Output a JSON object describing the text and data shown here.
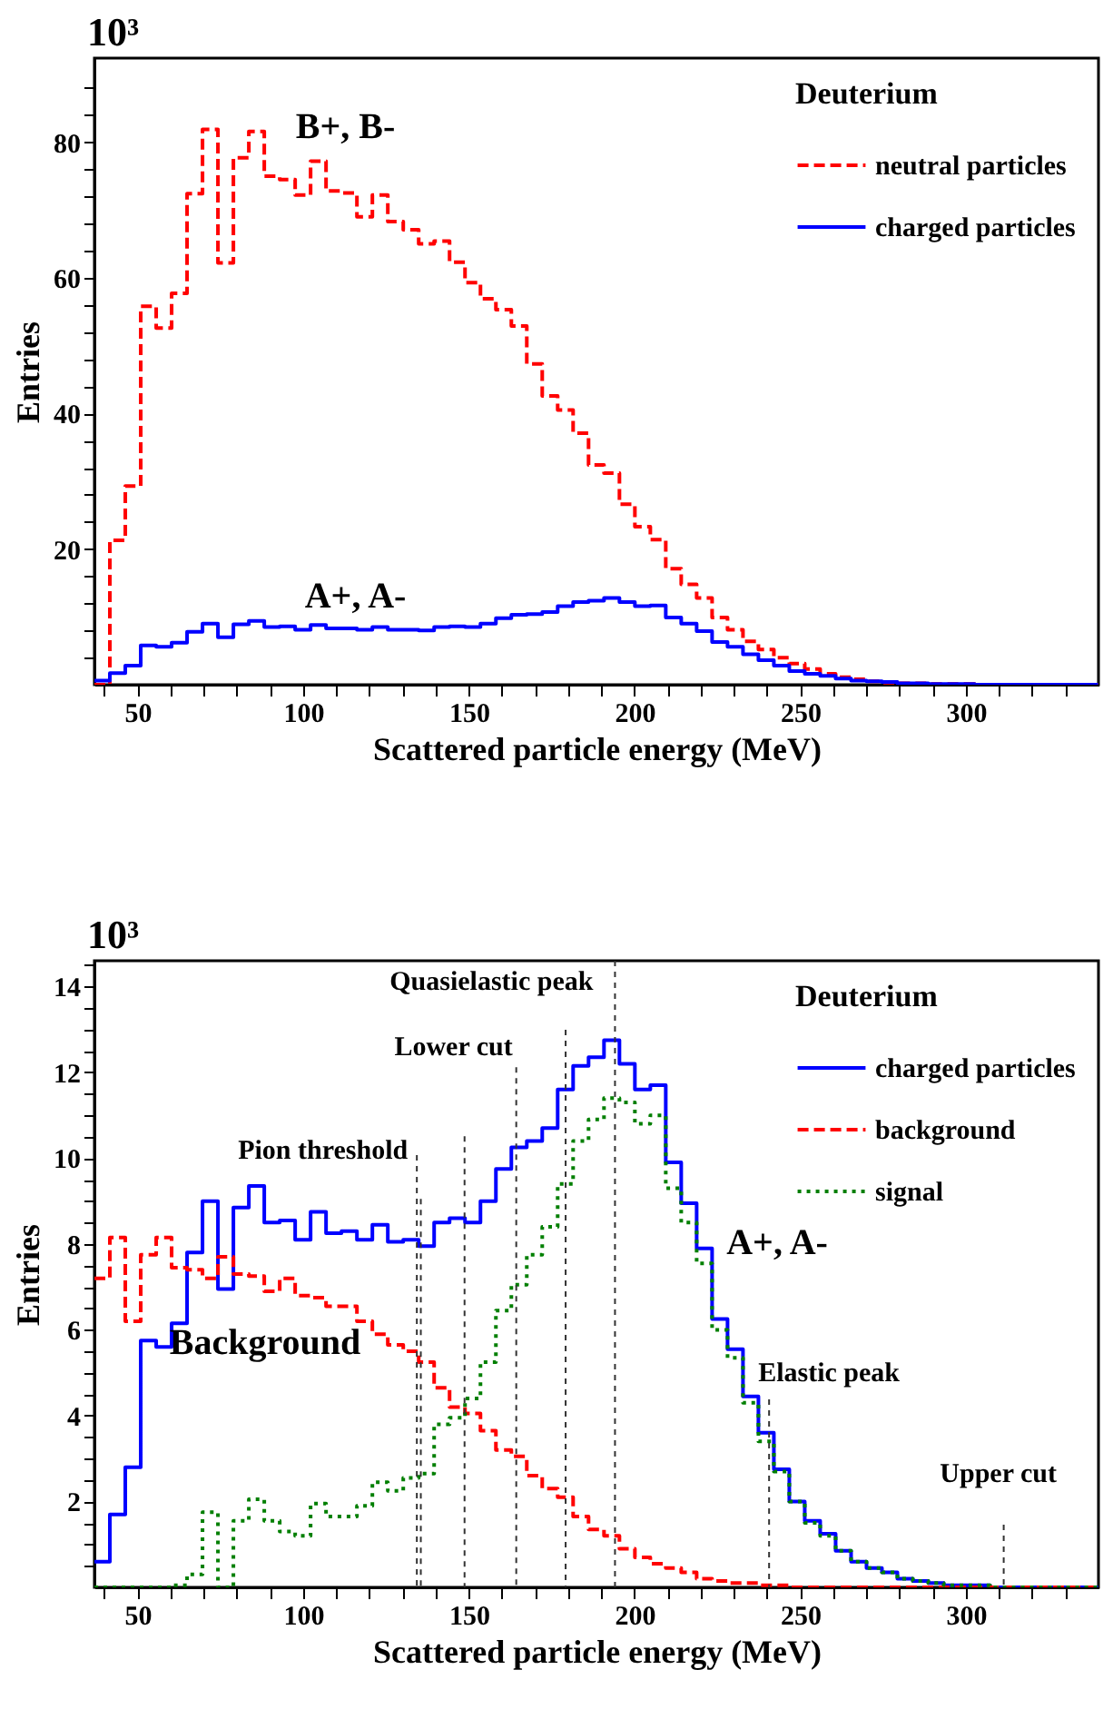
{
  "chart_data": [
    {
      "type": "histogram",
      "xlabel": "Scattered particle energy (MeV)",
      "ylabel": "Entries",
      "bins": [
        37,
        41.66,
        46.32,
        50.98,
        55.64,
        60.3,
        64.96,
        69.62,
        74.28,
        78.94,
        83.6,
        88.26,
        92.92,
        97.58,
        102.24,
        106.9,
        111.56,
        116.22,
        120.88,
        125.54,
        130.2,
        134.86,
        139.52,
        144.18,
        148.84,
        153.5,
        158.16,
        162.82,
        167.48,
        172.14,
        176.8,
        181.46,
        186.12,
        190.78,
        195.44,
        200.1,
        204.76,
        209.42,
        214.08,
        218.74,
        223.4,
        228.06,
        232.72,
        237.38,
        242.04,
        246.7,
        251.36,
        256.02,
        260.68,
        265.34,
        270,
        274.66,
        279.32,
        283.98,
        288.64,
        293.3,
        297.96,
        302.62,
        307.28,
        311.94,
        316.6,
        321.26,
        325.92,
        330.58,
        335.24,
        339.9
      ],
      "series": [
        {
          "name": "neutral particles",
          "color": "#ff0000",
          "line_style": "dashed",
          "values": [
            0,
            21.3,
            29.3,
            55.8,
            52.6,
            57.7,
            72.4,
            81.9,
            62.2,
            77.7,
            81.6,
            75,
            74.5,
            72.2,
            77.2,
            72.8,
            72.5,
            69,
            72.2,
            68.3,
            67.1,
            65,
            65.4,
            62.3,
            59.3,
            56.9,
            55.3,
            52.9,
            47.3,
            42.6,
            40.5,
            37.1,
            32.4,
            31.2,
            26.6,
            23.3,
            21.4,
            17.1,
            14.8,
            12.8,
            9.9,
            8.1,
            6.4,
            5.2,
            4.0,
            3.1,
            2.3,
            1.6,
            1.1,
            0.8,
            0.5,
            0.3,
            0.2,
            0.2,
            0.1,
            0.1,
            0.1,
            0,
            0,
            0,
            0,
            0,
            0,
            0,
            0
          ]
        },
        {
          "name": "charged particles",
          "color": "#0000ff",
          "line_style": "solid",
          "values": [
            0.6,
            1.7,
            2.8,
            5.8,
            5.6,
            6.2,
            7.8,
            9.0,
            7.0,
            8.9,
            9.4,
            8.5,
            8.6,
            8.1,
            8.8,
            8.3,
            8.3,
            8.1,
            8.5,
            8.1,
            8.1,
            8.0,
            8.5,
            8.6,
            8.5,
            9.0,
            9.8,
            10.3,
            10.4,
            10.7,
            11.6,
            12.2,
            12.4,
            12.8,
            12.2,
            11.6,
            11.7,
            9.9,
            9.0,
            7.9,
            6.3,
            5.6,
            4.5,
            3.6,
            2.8,
            2.0,
            1.6,
            1.3,
            0.9,
            0.6,
            0.5,
            0.4,
            0.2,
            0.2,
            0.1,
            0.1,
            0.1,
            0,
            0,
            0,
            0,
            0,
            0,
            0,
            0
          ]
        }
      ],
      "xlim": [
        37,
        340
      ],
      "ylim": [
        0,
        92.4
      ],
      "xticks": [
        {
          "value": 40,
          "label": null
        },
        50,
        {
          "value": 60,
          "label": null
        },
        {
          "value": 70,
          "label": null
        },
        {
          "value": 80,
          "label": null
        },
        {
          "value": 90,
          "label": null
        },
        100,
        {
          "value": 110,
          "label": null
        },
        {
          "value": 120,
          "label": null
        },
        {
          "value": 130,
          "label": null
        },
        {
          "value": 140,
          "label": null
        },
        150,
        {
          "value": 160,
          "label": null
        },
        {
          "value": 170,
          "label": null
        },
        {
          "value": 180,
          "label": null
        },
        {
          "value": 190,
          "label": null
        },
        200,
        {
          "value": 210,
          "label": null
        },
        {
          "value": 220,
          "label": null
        },
        {
          "value": 230,
          "label": null
        },
        {
          "value": 240,
          "label": null
        },
        250,
        {
          "value": 260,
          "label": null
        },
        {
          "value": 270,
          "label": null
        },
        {
          "value": 280,
          "label": null
        },
        {
          "value": 290,
          "label": null
        },
        300,
        {
          "value": 310,
          "label": null
        },
        {
          "value": 320,
          "label": null
        },
        {
          "value": 330,
          "label": null
        }
      ],
      "yticks": [
        {
          "value": 4,
          "label": null
        },
        {
          "value": 8,
          "label": null
        },
        {
          "value": 12,
          "label": null
        },
        {
          "value": 16,
          "label": null
        },
        20,
        {
          "value": 24,
          "label": null
        },
        {
          "value": 28,
          "label": null
        },
        {
          "value": 32,
          "label": null
        },
        {
          "value": 36,
          "label": null
        },
        40,
        {
          "value": 44,
          "label": null
        },
        {
          "value": 48,
          "label": null
        },
        {
          "value": 52,
          "label": null
        },
        {
          "value": 56,
          "label": null
        },
        60,
        {
          "value": 64,
          "label": null
        },
        {
          "value": 68,
          "label": null
        },
        {
          "value": 72,
          "label": null
        },
        {
          "value": 76,
          "label": null
        },
        80,
        {
          "value": 84,
          "label": null
        },
        {
          "value": 88,
          "label": null
        }
      ],
      "grid": false,
      "legend": "top right",
      "legend_title": "Deuterium",
      "annotations": [
        "10³",
        "B+, B-",
        "A+, A-"
      ]
    },
    {
      "type": "histogram",
      "xlabel": "Scattered particle energy (MeV)",
      "ylabel": "Entries",
      "bins": [
        37,
        41.66,
        46.32,
        50.98,
        55.64,
        60.3,
        64.96,
        69.62,
        74.28,
        78.94,
        83.6,
        88.26,
        92.92,
        97.58,
        102.24,
        106.9,
        111.56,
        116.22,
        120.88,
        125.54,
        130.2,
        134.86,
        139.52,
        144.18,
        148.84,
        153.5,
        158.16,
        162.82,
        167.48,
        172.14,
        176.8,
        181.46,
        186.12,
        190.78,
        195.44,
        200.1,
        204.76,
        209.42,
        214.08,
        218.74,
        223.4,
        228.06,
        232.72,
        237.38,
        242.04,
        246.7,
        251.36,
        256.02,
        260.68,
        265.34,
        270,
        274.66,
        279.32,
        283.98,
        288.64,
        293.3,
        297.96,
        302.62,
        307.28,
        311.94,
        316.6,
        321.26,
        325.92,
        330.58,
        335.24,
        339.9
      ],
      "series": [
        {
          "name": "charged particles",
          "color": "#0000ff",
          "line_style": "solid",
          "values": [
            0.6,
            1.7,
            2.8,
            5.75,
            5.6,
            6.15,
            7.8,
            9.0,
            6.95,
            8.85,
            9.35,
            8.5,
            8.55,
            8.1,
            8.75,
            8.25,
            8.3,
            8.1,
            8.45,
            8.05,
            8.1,
            7.95,
            8.5,
            8.6,
            8.5,
            9.0,
            9.75,
            10.25,
            10.4,
            10.7,
            11.6,
            12.15,
            12.35,
            12.75,
            12.2,
            11.6,
            11.7,
            9.9,
            8.95,
            7.9,
            6.25,
            5.55,
            4.45,
            3.6,
            2.75,
            2.0,
            1.55,
            1.25,
            0.85,
            0.6,
            0.45,
            0.35,
            0.2,
            0.15,
            0.1,
            0.05,
            0.05,
            0.05,
            0,
            0,
            0,
            0,
            0,
            0,
            0
          ]
        },
        {
          "name": "background",
          "color": "#ff0000",
          "line_style": "dashed",
          "values": [
            7.2,
            8.15,
            6.2,
            7.75,
            8.15,
            7.45,
            7.4,
            7.2,
            7.7,
            7.3,
            7.25,
            6.9,
            7.2,
            6.8,
            6.75,
            6.55,
            6.55,
            6.2,
            5.9,
            5.65,
            5.5,
            5.25,
            4.65,
            4.2,
            4.05,
            3.65,
            3.2,
            3.05,
            2.6,
            2.3,
            2.1,
            1.65,
            1.35,
            1.2,
            0.9,
            0.7,
            0.55,
            0.45,
            0.35,
            0.2,
            0.15,
            0.1,
            0.1,
            0.05,
            0.05,
            0,
            0,
            0,
            0,
            0,
            0,
            0,
            0,
            0,
            0,
            0,
            0,
            0,
            0,
            0,
            0,
            0,
            0,
            0,
            0
          ]
        },
        {
          "name": "signal",
          "color": "#007f00",
          "line_style": "dotted",
          "values": [
            0,
            0,
            0,
            0,
            0,
            0.05,
            0.3,
            1.75,
            0,
            1.55,
            2.05,
            1.55,
            1.3,
            1.2,
            1.95,
            1.65,
            1.65,
            1.9,
            2.45,
            2.25,
            2.55,
            2.65,
            3.8,
            3.95,
            4.4,
            5.25,
            6.45,
            7.05,
            7.75,
            8.4,
            9.4,
            10.4,
            10.9,
            11.4,
            11.3,
            10.8,
            11.0,
            9.3,
            8.5,
            7.55,
            6.0,
            5.35,
            4.3,
            3.4,
            2.7,
            2.0,
            1.5,
            1.2,
            0.85,
            0.6,
            0.45,
            0.35,
            0.2,
            0.15,
            0.1,
            0.05,
            0.05,
            0.05,
            0,
            0,
            0,
            0,
            0,
            0,
            0
          ]
        }
      ],
      "xlim": [
        37,
        340
      ],
      "ylim": [
        0,
        14.6
      ],
      "xticks": [
        {
          "value": 40,
          "label": null
        },
        50,
        {
          "value": 60,
          "label": null
        },
        {
          "value": 70,
          "label": null
        },
        {
          "value": 80,
          "label": null
        },
        {
          "value": 90,
          "label": null
        },
        100,
        {
          "value": 110,
          "label": null
        },
        {
          "value": 120,
          "label": null
        },
        {
          "value": 130,
          "label": null
        },
        {
          "value": 140,
          "label": null
        },
        150,
        {
          "value": 160,
          "label": null
        },
        {
          "value": 170,
          "label": null
        },
        {
          "value": 180,
          "label": null
        },
        {
          "value": 190,
          "label": null
        },
        200,
        {
          "value": 210,
          "label": null
        },
        {
          "value": 220,
          "label": null
        },
        {
          "value": 230,
          "label": null
        },
        {
          "value": 240,
          "label": null
        },
        250,
        {
          "value": 260,
          "label": null
        },
        {
          "value": 270,
          "label": null
        },
        {
          "value": 280,
          "label": null
        },
        {
          "value": 290,
          "label": null
        },
        300,
        {
          "value": 310,
          "label": null
        },
        {
          "value": 320,
          "label": null
        },
        {
          "value": 330,
          "label": null
        }
      ],
      "yticks": [
        {
          "value": 0.5,
          "label": null
        },
        {
          "value": 1,
          "label": null
        },
        {
          "value": 1.5,
          "label": null
        },
        2,
        {
          "value": 2.5,
          "label": null
        },
        {
          "value": 3,
          "label": null
        },
        {
          "value": 3.5,
          "label": null
        },
        4,
        {
          "value": 4.5,
          "label": null
        },
        {
          "value": 5,
          "label": null
        },
        {
          "value": 5.5,
          "label": null
        },
        6,
        {
          "value": 6.5,
          "label": null
        },
        {
          "value": 7,
          "label": null
        },
        {
          "value": 7.5,
          "label": null
        },
        8,
        {
          "value": 8.5,
          "label": null
        },
        {
          "value": 9,
          "label": null
        },
        {
          "value": 9.5,
          "label": null
        },
        10,
        {
          "value": 10.5,
          "label": null
        },
        {
          "value": 11,
          "label": null
        },
        {
          "value": 11.5,
          "label": null
        },
        12,
        {
          "value": 12.5,
          "label": null
        },
        {
          "value": 13,
          "label": null
        },
        {
          "value": 13.5,
          "label": null
        },
        14,
        {
          "value": 14.5,
          "label": null
        }
      ],
      "grid": false,
      "legend": "top right",
      "legend_title": "Deuterium",
      "ref_lines": [
        {
          "axis": "x",
          "value": 134.3,
          "label": "Pion threshold"
        },
        {
          "axis": "x",
          "value": 135.5,
          "label": null
        },
        {
          "axis": "x",
          "value": 148.7,
          "label": null
        },
        {
          "axis": "x",
          "value": 164.3,
          "label": "Lower cut"
        },
        {
          "axis": "x",
          "value": 179.2,
          "label": null
        },
        {
          "axis": "x",
          "value": 194.1,
          "label": "Quasielastic peak"
        },
        {
          "axis": "x",
          "value": 240.6,
          "label": "Elastic peak"
        },
        {
          "axis": "x",
          "value": 311.4,
          "label": "Upper cut"
        }
      ],
      "annotations": [
        "10³",
        "A+, A-",
        "Background"
      ]
    }
  ]
}
